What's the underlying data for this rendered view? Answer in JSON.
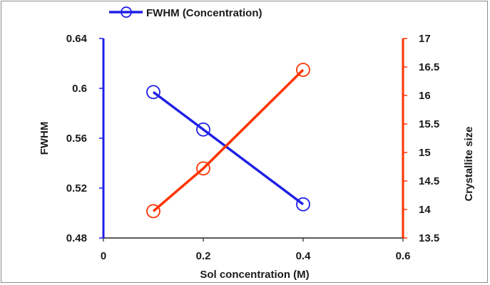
{
  "chart_data": {
    "type": "line",
    "title": "",
    "xlabel": "Sol concentration (M)",
    "ylabel": "FWHM",
    "y2label": "Crystallite size",
    "xlim": [
      0,
      0.6
    ],
    "ylim": [
      0.48,
      0.64
    ],
    "y2lim": [
      13.5,
      17
    ],
    "x_ticks": [
      "0",
      "0.2",
      "0.4",
      "0.6"
    ],
    "y_ticks": [
      "0.48",
      "0.52",
      "0.56",
      "0.6",
      "0.64"
    ],
    "y2_ticks": [
      "13.5",
      "14",
      "14.5",
      "15",
      "15.5",
      "16",
      "16.5",
      "17"
    ],
    "legend_position": "top",
    "series": [
      {
        "name": "FWHM (Concentration)",
        "axis": "left",
        "color": "#1f1fe6",
        "x": [
          0.1,
          0.2,
          0.4
        ],
        "values": [
          0.597,
          0.567,
          0.507
        ],
        "marker": "circle-open"
      },
      {
        "name": "Crystallite size",
        "axis": "right",
        "color": "#ff3300",
        "x": [
          0.1,
          0.2,
          0.4
        ],
        "values": [
          13.97,
          14.72,
          16.45
        ],
        "marker": "circle-open"
      }
    ]
  }
}
